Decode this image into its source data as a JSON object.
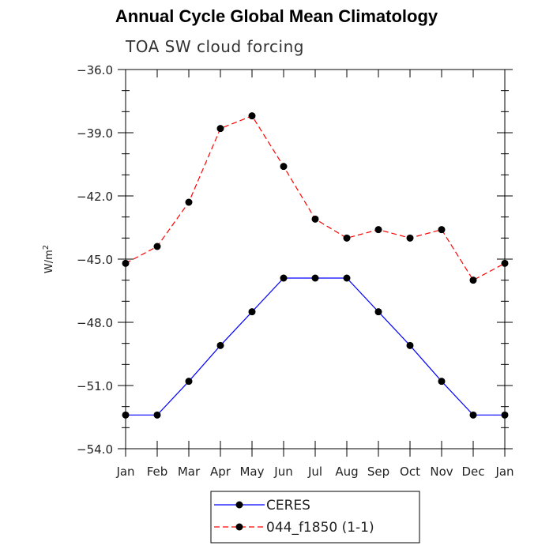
{
  "chart_data": {
    "type": "line",
    "title": "Annual Cycle Global Mean Climatology",
    "subtitle": "TOA SW cloud forcing",
    "xlabel": "",
    "ylabel": "W/m",
    "ylabel_superscript": "2",
    "categories": [
      "Jan",
      "Feb",
      "Mar",
      "Apr",
      "May",
      "Jun",
      "Jul",
      "Aug",
      "Sep",
      "Oct",
      "Nov",
      "Dec",
      "Jan"
    ],
    "ylim": [
      -54.0,
      -36.0
    ],
    "yticks": [
      -54.0,
      -51.0,
      -48.0,
      -45.0,
      -42.0,
      -39.0,
      -36.0
    ],
    "ytick_labels": [
      "-54.0",
      "-51.0",
      "-48.0",
      "-45.0",
      "-42.0",
      "-39.0",
      "-36.0"
    ],
    "series": [
      {
        "name": "CERES",
        "color": "#0000ff",
        "dash": "solid",
        "values": [
          -52.4,
          -52.4,
          -50.8,
          -49.1,
          -47.5,
          -45.9,
          -45.9,
          -45.9,
          -47.5,
          -49.1,
          -50.8,
          -52.4,
          -52.4
        ]
      },
      {
        "name": "044_f1850 (1-1)",
        "color": "#ff0000",
        "dash": "dashed",
        "values": [
          -45.2,
          -44.4,
          -42.3,
          -38.8,
          -38.2,
          -40.6,
          -43.1,
          -44.0,
          -43.6,
          -44.0,
          -43.6,
          -46.0,
          -45.2
        ]
      }
    ],
    "legend_position": "bottom-center"
  }
}
